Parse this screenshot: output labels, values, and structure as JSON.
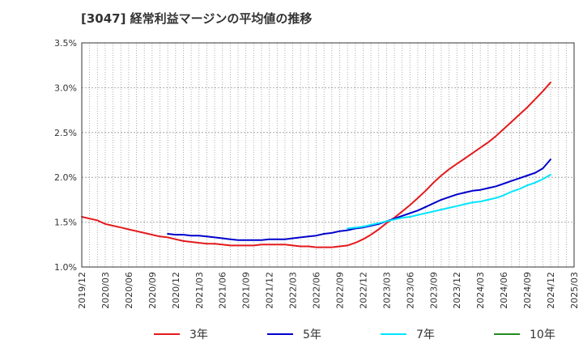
{
  "chart_data": {
    "type": "line",
    "title": "[3047]  経常利益マージンの平均値の推移",
    "xlabel": "",
    "ylabel": "",
    "ylim": [
      1.0,
      3.5
    ],
    "y_ticks": [
      "1.0%",
      "1.5%",
      "2.0%",
      "2.5%",
      "3.0%",
      "3.5%"
    ],
    "x_ticks": [
      "2019/12",
      "2020/03",
      "2020/06",
      "2020/09",
      "2020/12",
      "2021/03",
      "2021/06",
      "2021/09",
      "2021/12",
      "2022/03",
      "2022/06",
      "2022/09",
      "2022/12",
      "2023/03",
      "2023/06",
      "2023/09",
      "2023/12",
      "2024/03",
      "2024/06",
      "2024/09",
      "2024/12",
      "2025/03"
    ],
    "grid": true,
    "legend_position": "bottom",
    "series": [
      {
        "name": "3年",
        "color": "#e31a1c",
        "points": [
          [
            "2019/12",
            1.56
          ],
          [
            "2020/01",
            1.54
          ],
          [
            "2020/02",
            1.52
          ],
          [
            "2020/03",
            1.48
          ],
          [
            "2020/04",
            1.46
          ],
          [
            "2020/05",
            1.44
          ],
          [
            "2020/06",
            1.42
          ],
          [
            "2020/07",
            1.4
          ],
          [
            "2020/08",
            1.38
          ],
          [
            "2020/09",
            1.36
          ],
          [
            "2020/10",
            1.34
          ],
          [
            "2020/11",
            1.33
          ],
          [
            "2020/12",
            1.31
          ],
          [
            "2021/01",
            1.29
          ],
          [
            "2021/02",
            1.28
          ],
          [
            "2021/03",
            1.27
          ],
          [
            "2021/04",
            1.26
          ],
          [
            "2021/05",
            1.26
          ],
          [
            "2021/06",
            1.25
          ],
          [
            "2021/07",
            1.24
          ],
          [
            "2021/08",
            1.24
          ],
          [
            "2021/09",
            1.24
          ],
          [
            "2021/10",
            1.24
          ],
          [
            "2021/11",
            1.25
          ],
          [
            "2021/12",
            1.25
          ],
          [
            "2022/01",
            1.25
          ],
          [
            "2022/02",
            1.25
          ],
          [
            "2022/03",
            1.24
          ],
          [
            "2022/04",
            1.23
          ],
          [
            "2022/05",
            1.23
          ],
          [
            "2022/06",
            1.22
          ],
          [
            "2022/07",
            1.22
          ],
          [
            "2022/08",
            1.22
          ],
          [
            "2022/09",
            1.23
          ],
          [
            "2022/10",
            1.24
          ],
          [
            "2022/11",
            1.27
          ],
          [
            "2022/12",
            1.31
          ],
          [
            "2023/01",
            1.36
          ],
          [
            "2023/02",
            1.42
          ],
          [
            "2023/03",
            1.49
          ],
          [
            "2023/04",
            1.55
          ],
          [
            "2023/05",
            1.62
          ],
          [
            "2023/06",
            1.69
          ],
          [
            "2023/07",
            1.77
          ],
          [
            "2023/08",
            1.85
          ],
          [
            "2023/09",
            1.94
          ],
          [
            "2023/10",
            2.02
          ],
          [
            "2023/11",
            2.09
          ],
          [
            "2023/12",
            2.15
          ],
          [
            "2024/01",
            2.21
          ],
          [
            "2024/02",
            2.27
          ],
          [
            "2024/03",
            2.33
          ],
          [
            "2024/04",
            2.39
          ],
          [
            "2024/05",
            2.46
          ],
          [
            "2024/06",
            2.54
          ],
          [
            "2024/07",
            2.62
          ],
          [
            "2024/08",
            2.7
          ],
          [
            "2024/09",
            2.78
          ],
          [
            "2024/10",
            2.87
          ],
          [
            "2024/11",
            2.96
          ],
          [
            "2024/12",
            3.06
          ]
        ]
      },
      {
        "name": "5年",
        "color": "#0000cc",
        "points": [
          [
            "2020/11",
            1.37
          ],
          [
            "2020/12",
            1.36
          ],
          [
            "2021/01",
            1.36
          ],
          [
            "2021/02",
            1.35
          ],
          [
            "2021/03",
            1.35
          ],
          [
            "2021/04",
            1.34
          ],
          [
            "2021/05",
            1.33
          ],
          [
            "2021/06",
            1.32
          ],
          [
            "2021/07",
            1.31
          ],
          [
            "2021/08",
            1.3
          ],
          [
            "2021/09",
            1.3
          ],
          [
            "2021/10",
            1.3
          ],
          [
            "2021/11",
            1.3
          ],
          [
            "2021/12",
            1.31
          ],
          [
            "2022/01",
            1.31
          ],
          [
            "2022/02",
            1.31
          ],
          [
            "2022/03",
            1.32
          ],
          [
            "2022/04",
            1.33
          ],
          [
            "2022/05",
            1.34
          ],
          [
            "2022/06",
            1.35
          ],
          [
            "2022/07",
            1.37
          ],
          [
            "2022/08",
            1.38
          ],
          [
            "2022/09",
            1.4
          ],
          [
            "2022/10",
            1.41
          ],
          [
            "2022/11",
            1.43
          ],
          [
            "2022/12",
            1.44
          ],
          [
            "2023/01",
            1.46
          ],
          [
            "2023/02",
            1.48
          ],
          [
            "2023/03",
            1.51
          ],
          [
            "2023/04",
            1.54
          ],
          [
            "2023/05",
            1.57
          ],
          [
            "2023/06",
            1.6
          ],
          [
            "2023/07",
            1.63
          ],
          [
            "2023/08",
            1.67
          ],
          [
            "2023/09",
            1.71
          ],
          [
            "2023/10",
            1.75
          ],
          [
            "2023/11",
            1.78
          ],
          [
            "2023/12",
            1.81
          ],
          [
            "2024/01",
            1.83
          ],
          [
            "2024/02",
            1.85
          ],
          [
            "2024/03",
            1.86
          ],
          [
            "2024/04",
            1.88
          ],
          [
            "2024/05",
            1.9
          ],
          [
            "2024/06",
            1.93
          ],
          [
            "2024/07",
            1.96
          ],
          [
            "2024/08",
            1.99
          ],
          [
            "2024/09",
            2.02
          ],
          [
            "2024/10",
            2.05
          ],
          [
            "2024/11",
            2.1
          ],
          [
            "2024/12",
            2.2
          ]
        ]
      },
      {
        "name": "7年",
        "color": "#00e5ff",
        "points": [
          [
            "2022/10",
            1.43
          ],
          [
            "2022/11",
            1.44
          ],
          [
            "2022/12",
            1.45
          ],
          [
            "2023/01",
            1.47
          ],
          [
            "2023/02",
            1.49
          ],
          [
            "2023/03",
            1.51
          ],
          [
            "2023/04",
            1.53
          ],
          [
            "2023/05",
            1.55
          ],
          [
            "2023/06",
            1.56
          ],
          [
            "2023/07",
            1.58
          ],
          [
            "2023/08",
            1.6
          ],
          [
            "2023/09",
            1.62
          ],
          [
            "2023/10",
            1.64
          ],
          [
            "2023/11",
            1.66
          ],
          [
            "2023/12",
            1.68
          ],
          [
            "2024/01",
            1.7
          ],
          [
            "2024/02",
            1.72
          ],
          [
            "2024/03",
            1.73
          ],
          [
            "2024/04",
            1.75
          ],
          [
            "2024/05",
            1.77
          ],
          [
            "2024/06",
            1.8
          ],
          [
            "2024/07",
            1.84
          ],
          [
            "2024/08",
            1.87
          ],
          [
            "2024/09",
            1.91
          ],
          [
            "2024/10",
            1.94
          ],
          [
            "2024/11",
            1.98
          ],
          [
            "2024/12",
            2.03
          ]
        ]
      },
      {
        "name": "10年",
        "color": "#228b22",
        "points": []
      }
    ]
  }
}
